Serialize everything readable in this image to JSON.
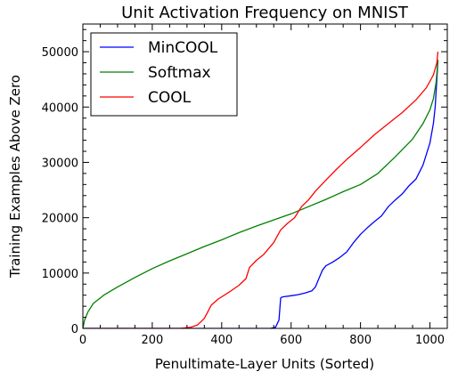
{
  "chart_data": {
    "type": "line",
    "title": "Unit Activation Frequency on MNIST",
    "xlabel": "Penultimate-Layer Units (Sorted)",
    "ylabel": "Training Examples Above Zero",
    "xlim": [
      0,
      1050
    ],
    "ylim": [
      0,
      55000
    ],
    "xticks": [
      0,
      200,
      400,
      600,
      800,
      1000
    ],
    "yticks": [
      0,
      10000,
      20000,
      30000,
      40000,
      50000
    ],
    "grid": false,
    "legend_position": "top-left",
    "series": [
      {
        "name": "MinCOOL",
        "color": "#0000ff",
        "points": [
          [
            0,
            0
          ],
          [
            540,
            0
          ],
          [
            555,
            200
          ],
          [
            565,
            1500
          ],
          [
            570,
            5500
          ],
          [
            575,
            5700
          ],
          [
            600,
            5900
          ],
          [
            620,
            6100
          ],
          [
            640,
            6400
          ],
          [
            660,
            6800
          ],
          [
            670,
            7500
          ],
          [
            680,
            9000
          ],
          [
            690,
            10500
          ],
          [
            700,
            11300
          ],
          [
            720,
            12000
          ],
          [
            740,
            12800
          ],
          [
            760,
            13800
          ],
          [
            780,
            15500
          ],
          [
            800,
            17000
          ],
          [
            820,
            18200
          ],
          [
            840,
            19300
          ],
          [
            860,
            20300
          ],
          [
            880,
            22000
          ],
          [
            900,
            23200
          ],
          [
            920,
            24300
          ],
          [
            940,
            25800
          ],
          [
            960,
            27000
          ],
          [
            980,
            29500
          ],
          [
            1000,
            33500
          ],
          [
            1010,
            37000
          ],
          [
            1015,
            40000
          ],
          [
            1020,
            45000
          ],
          [
            1023,
            48500
          ]
        ]
      },
      {
        "name": "Softmax",
        "color": "#008000",
        "points": [
          [
            0,
            0
          ],
          [
            5,
            1500
          ],
          [
            15,
            3000
          ],
          [
            30,
            4500
          ],
          [
            60,
            6000
          ],
          [
            100,
            7500
          ],
          [
            150,
            9200
          ],
          [
            200,
            10800
          ],
          [
            250,
            12200
          ],
          [
            300,
            13500
          ],
          [
            350,
            14800
          ],
          [
            400,
            16000
          ],
          [
            450,
            17300
          ],
          [
            500,
            18500
          ],
          [
            550,
            19600
          ],
          [
            600,
            20700
          ],
          [
            650,
            22000
          ],
          [
            700,
            23300
          ],
          [
            750,
            24700
          ],
          [
            800,
            26000
          ],
          [
            850,
            28000
          ],
          [
            900,
            31000
          ],
          [
            950,
            34200
          ],
          [
            980,
            37000
          ],
          [
            1000,
            39500
          ],
          [
            1010,
            41500
          ],
          [
            1018,
            44500
          ],
          [
            1023,
            48500
          ]
        ]
      },
      {
        "name": "COOL",
        "color": "#ff0000",
        "points": [
          [
            0,
            0
          ],
          [
            280,
            0
          ],
          [
            310,
            200
          ],
          [
            330,
            600
          ],
          [
            350,
            1800
          ],
          [
            370,
            4200
          ],
          [
            390,
            5300
          ],
          [
            420,
            6500
          ],
          [
            450,
            7800
          ],
          [
            470,
            9000
          ],
          [
            480,
            11000
          ],
          [
            500,
            12300
          ],
          [
            520,
            13300
          ],
          [
            550,
            15500
          ],
          [
            570,
            17800
          ],
          [
            590,
            19000
          ],
          [
            610,
            20000
          ],
          [
            630,
            22000
          ],
          [
            650,
            23200
          ],
          [
            670,
            24800
          ],
          [
            700,
            26800
          ],
          [
            730,
            28700
          ],
          [
            760,
            30500
          ],
          [
            800,
            32700
          ],
          [
            840,
            35000
          ],
          [
            880,
            37000
          ],
          [
            920,
            39000
          ],
          [
            960,
            41300
          ],
          [
            990,
            43500
          ],
          [
            1010,
            45800
          ],
          [
            1020,
            48000
          ],
          [
            1023,
            50000
          ]
        ]
      }
    ]
  }
}
